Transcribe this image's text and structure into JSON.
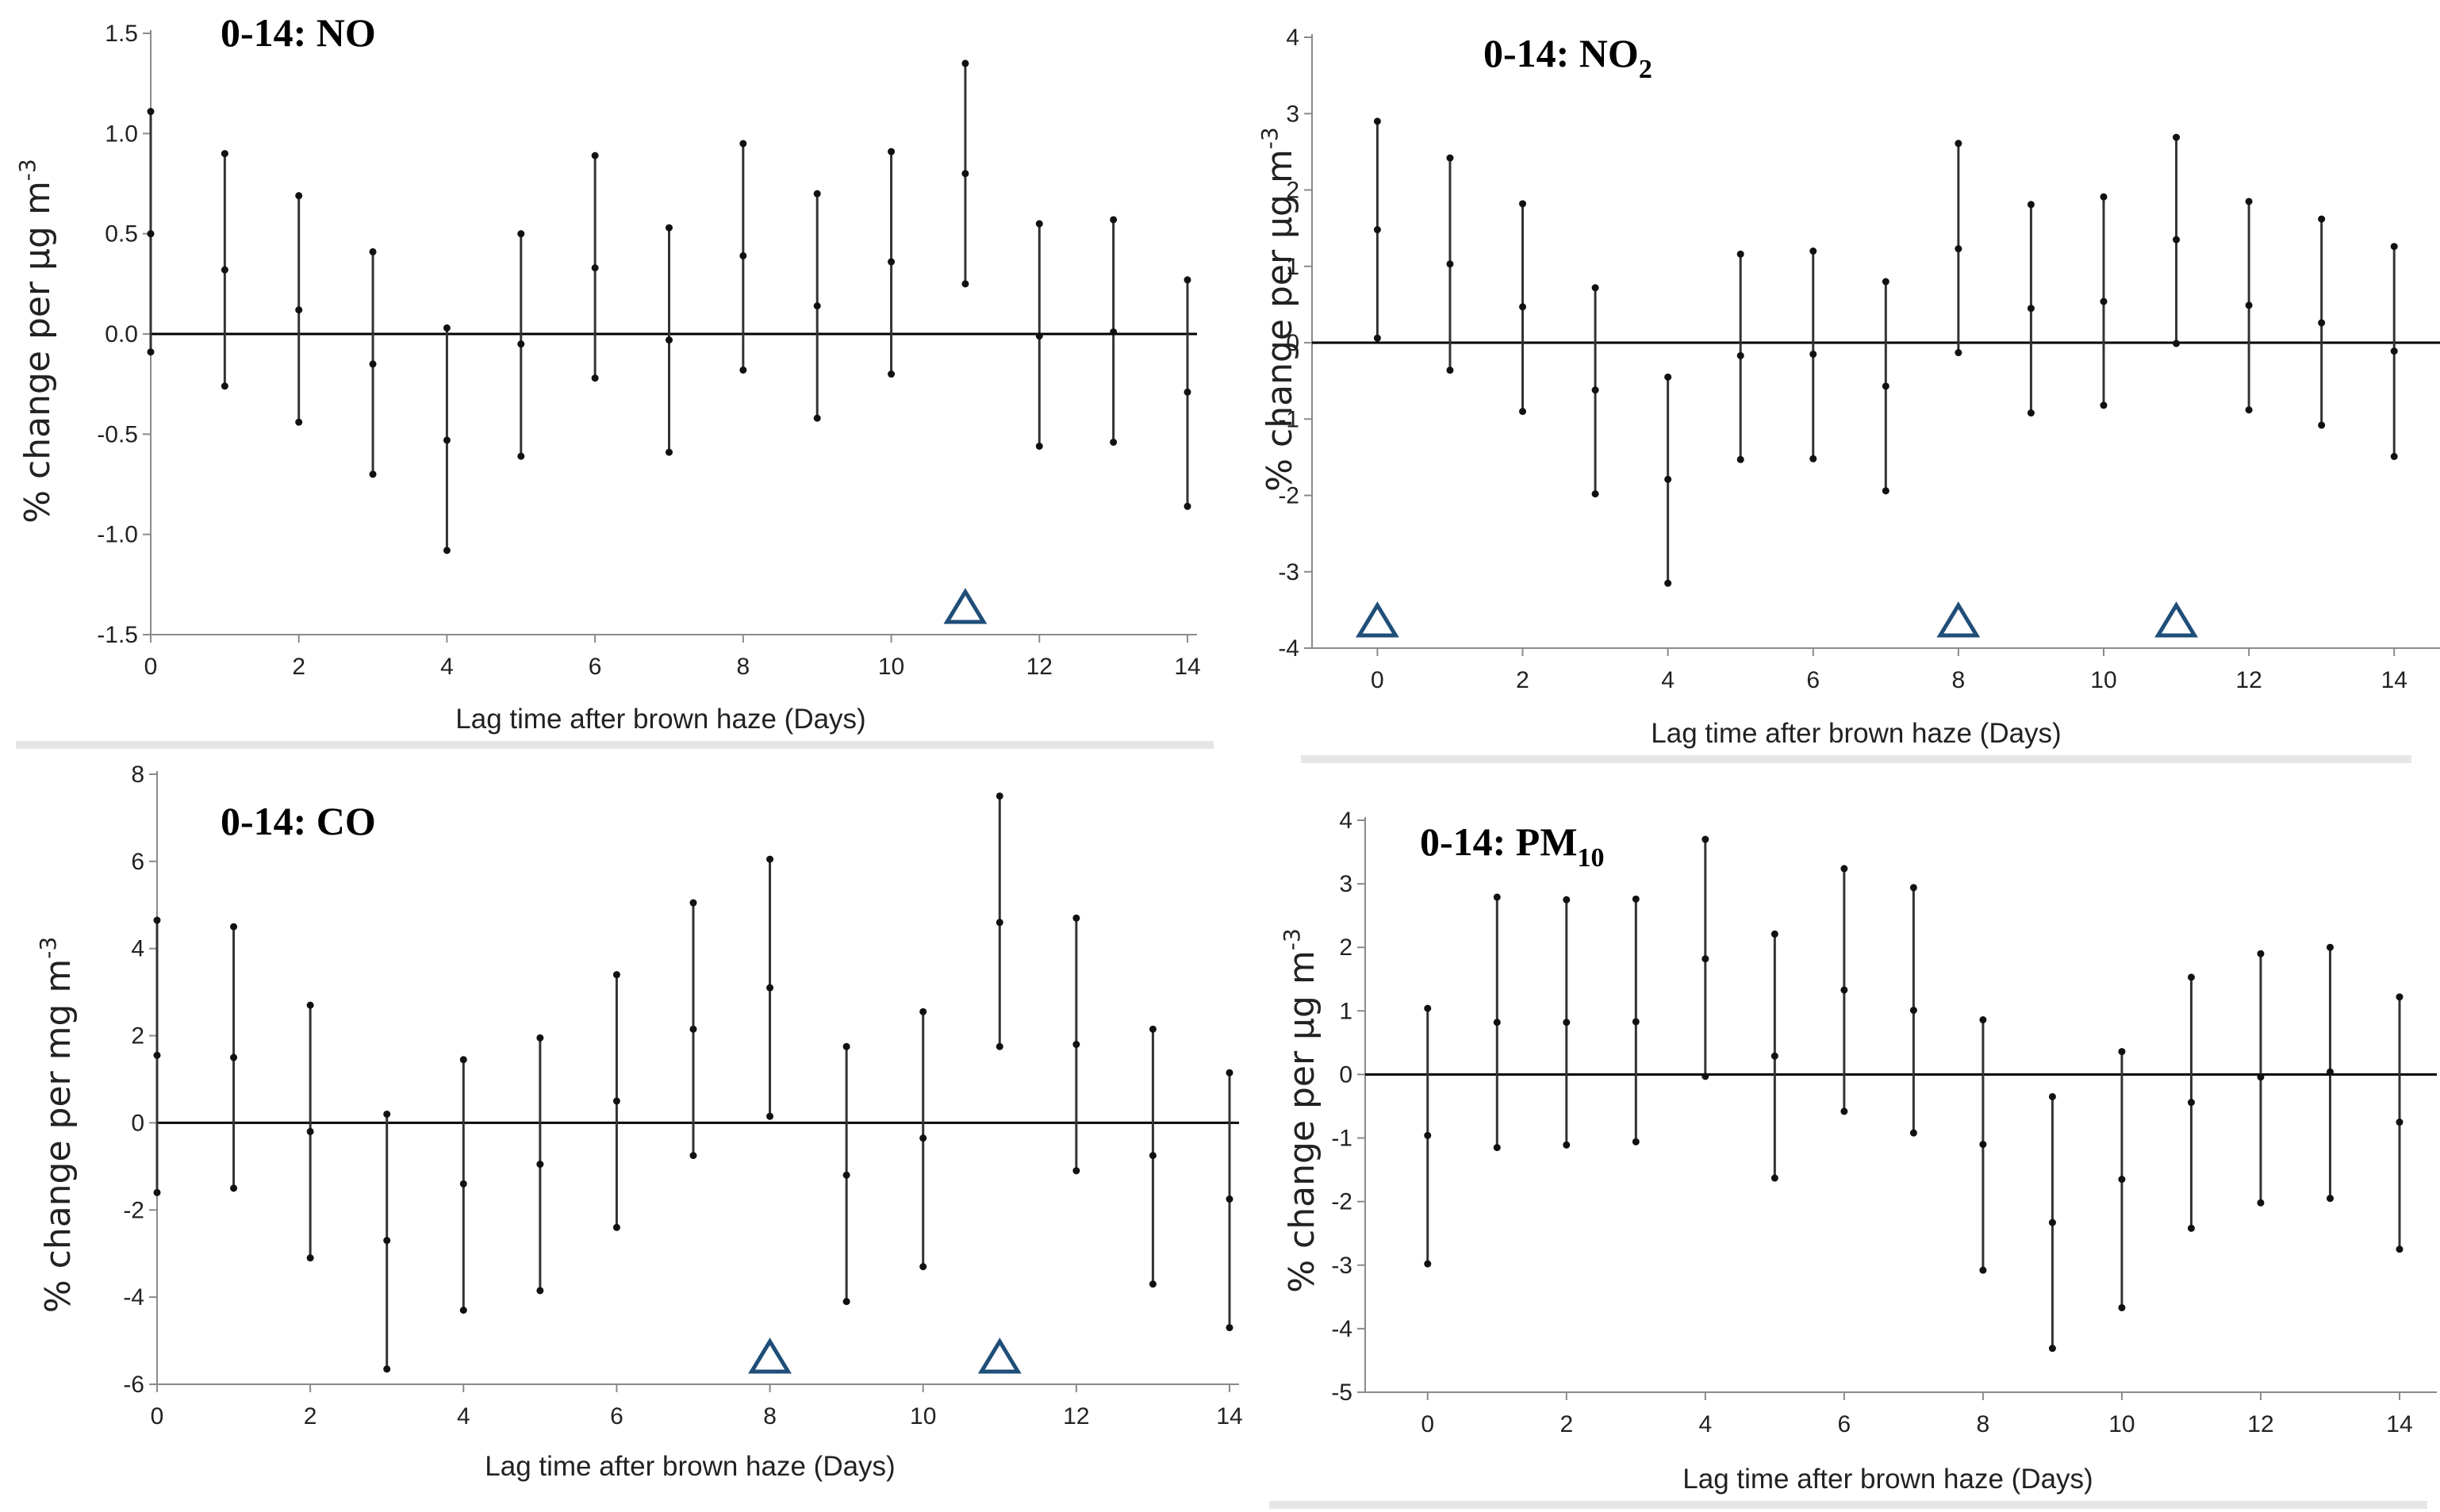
{
  "chart_data": [
    {
      "type": "errorbar",
      "title_main": "0-14: NO",
      "title_sub": "",
      "xlabel": "Lag time after brown haze (Days)",
      "ylabel_main": "% change per µg m",
      "ylabel_sup": "-3",
      "xlim": [
        0,
        14
      ],
      "ylim": [
        -1.5,
        1.5
      ],
      "xticks": [
        0,
        2,
        4,
        6,
        8,
        10,
        12,
        14
      ],
      "yticks": [
        -1.5,
        -1.0,
        -0.5,
        0.0,
        0.5,
        1.0,
        1.5
      ],
      "ytick_labels": [
        "-1.5",
        "-1.0",
        "-0.5",
        "0.0",
        "0.5",
        "1.0",
        "1.5"
      ],
      "reference_line": 0,
      "x": [
        0,
        1,
        2,
        3,
        4,
        5,
        6,
        7,
        8,
        9,
        10,
        11,
        12,
        13,
        14
      ],
      "estimate": [
        0.5,
        0.32,
        0.12,
        -0.15,
        -0.53,
        -0.05,
        0.33,
        -0.03,
        0.39,
        0.14,
        0.36,
        0.8,
        -0.01,
        0.01,
        -0.29
      ],
      "lower": [
        -0.09,
        -0.26,
        -0.44,
        -0.7,
        -1.08,
        -0.61,
        -0.22,
        -0.59,
        -0.18,
        -0.42,
        -0.2,
        0.25,
        -0.56,
        -0.54,
        -0.86
      ],
      "upper": [
        1.11,
        0.9,
        0.69,
        0.41,
        0.03,
        0.5,
        0.89,
        0.53,
        0.95,
        0.7,
        0.91,
        1.35,
        0.55,
        0.57,
        0.27
      ],
      "markers": [
        11
      ]
    },
    {
      "type": "errorbar",
      "title_main": "0-14: NO",
      "title_sub": "2",
      "xlabel": "Lag time after brown haze (Days)",
      "ylabel_main": "% change per µg m",
      "ylabel_sup": "-3",
      "xlim": [
        -0.9,
        14.5
      ],
      "ylim": [
        -4,
        4
      ],
      "xticks": [
        0,
        2,
        4,
        6,
        8,
        10,
        12,
        14
      ],
      "yticks": [
        -4,
        -3,
        -2,
        -1,
        0,
        1,
        2,
        3,
        4
      ],
      "ytick_labels": [
        "-4",
        "-3",
        "-2",
        "-1",
        "0",
        "1",
        "2",
        "3",
        "4"
      ],
      "reference_line": 0,
      "x": [
        0,
        1,
        2,
        3,
        4,
        5,
        6,
        7,
        8,
        9,
        10,
        11,
        12,
        13,
        14
      ],
      "estimate": [
        1.48,
        1.03,
        0.47,
        -0.62,
        -1.79,
        -0.17,
        -0.15,
        -0.57,
        1.23,
        0.45,
        0.54,
        1.35,
        0.49,
        0.26,
        -0.11
      ],
      "lower": [
        0.06,
        -0.36,
        -0.9,
        -1.98,
        -3.15,
        -1.53,
        -1.52,
        -1.94,
        -0.13,
        -0.92,
        -0.82,
        -0.01,
        -0.88,
        -1.08,
        -1.49
      ],
      "upper": [
        2.9,
        2.42,
        1.82,
        0.72,
        -0.45,
        1.16,
        1.2,
        0.8,
        2.61,
        1.81,
        1.91,
        2.69,
        1.85,
        1.62,
        1.26
      ],
      "markers": [
        0,
        8,
        11
      ]
    },
    {
      "type": "errorbar",
      "title_main": "0-14: CO",
      "title_sub": "",
      "xlabel": "Lag time after brown haze (Days)",
      "ylabel_main": "% change per mg m",
      "ylabel_sup": "-3",
      "xlim": [
        0,
        14
      ],
      "ylim": [
        -6,
        8
      ],
      "xticks": [
        0,
        2,
        4,
        6,
        8,
        10,
        12,
        14
      ],
      "yticks": [
        -6,
        -4,
        -2,
        0,
        2,
        4,
        6,
        8
      ],
      "ytick_labels": [
        "-6",
        "-4",
        "-2",
        "0",
        "2",
        "4",
        "6",
        "8"
      ],
      "reference_line": 0,
      "x": [
        0,
        1,
        2,
        3,
        4,
        5,
        6,
        7,
        8,
        9,
        10,
        11,
        12,
        13,
        14
      ],
      "estimate": [
        1.55,
        1.5,
        -0.2,
        -2.7,
        -1.4,
        -0.95,
        0.5,
        2.15,
        3.1,
        -1.2,
        -0.35,
        4.6,
        1.8,
        -0.75,
        -1.75
      ],
      "lower": [
        -1.6,
        -1.5,
        -3.1,
        -5.65,
        -4.3,
        -3.85,
        -2.4,
        -0.75,
        0.15,
        -4.1,
        -3.3,
        1.75,
        -1.1,
        -3.7,
        -4.7
      ],
      "upper": [
        4.65,
        4.5,
        2.7,
        0.2,
        1.45,
        1.95,
        3.4,
        5.05,
        6.05,
        1.75,
        2.55,
        7.5,
        4.7,
        2.15,
        1.15
      ],
      "markers": [
        8,
        11
      ]
    },
    {
      "type": "errorbar",
      "title_main": "0-14: PM",
      "title_sub": "10",
      "xlabel": "Lag time after brown haze (Days)",
      "ylabel_main": "% change per µg m",
      "ylabel_sup": "-3",
      "xlim": [
        -0.9,
        14.4
      ],
      "ylim": [
        -5,
        4
      ],
      "xticks": [
        0,
        2,
        4,
        6,
        8,
        10,
        12,
        14
      ],
      "yticks": [
        -5,
        -4,
        -3,
        -2,
        -1,
        0,
        1,
        2,
        3,
        4
      ],
      "ytick_labels": [
        "-5",
        "-4",
        "-3",
        "-2",
        "-1",
        "0",
        "1",
        "2",
        "3",
        "4"
      ],
      "reference_line": 0,
      "x": [
        0,
        1,
        2,
        3,
        4,
        5,
        6,
        7,
        8,
        9,
        10,
        11,
        12,
        13,
        14
      ],
      "estimate": [
        -0.96,
        0.82,
        0.82,
        0.83,
        1.82,
        0.29,
        1.33,
        1.01,
        -1.1,
        -2.33,
        -1.65,
        -0.44,
        -0.04,
        0.04,
        -0.75
      ],
      "lower": [
        -2.98,
        -1.15,
        -1.11,
        -1.06,
        -0.03,
        -1.63,
        -0.58,
        -0.92,
        -3.08,
        -4.31,
        -3.67,
        -2.42,
        -2.02,
        -1.95,
        -2.75
      ],
      "upper": [
        1.04,
        2.79,
        2.75,
        2.76,
        3.7,
        2.21,
        3.24,
        2.94,
        0.86,
        -0.35,
        0.36,
        1.53,
        1.9,
        2.0,
        1.22
      ],
      "markers": []
    }
  ]
}
